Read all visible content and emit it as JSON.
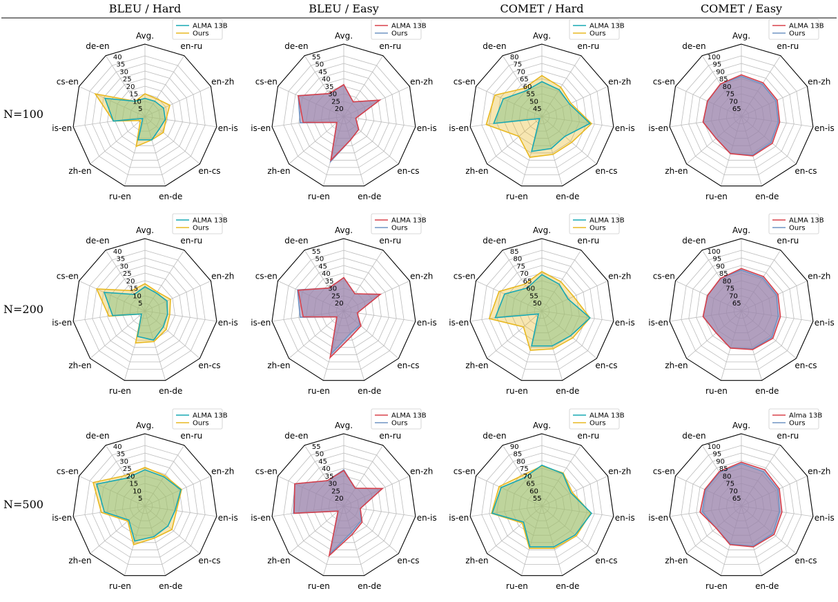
{
  "header": {
    "columns": [
      "BLEU / Hard",
      "BLEU / Easy",
      "COMET / Hard",
      "COMET / Easy"
    ],
    "rows": [
      "N=100",
      "N=200",
      "N=500"
    ]
  },
  "colors": {
    "hard_a": "#17a8b4",
    "hard_b": "#e8b820",
    "hard_fill": "#8fc48a",
    "easy_a": "#d9404a",
    "easy_b": "#6f93c4",
    "easy_fill": "#9c86ad",
    "grid": "#bbbbbb",
    "frame": "#000000"
  },
  "chart_data": [
    {
      "id": "bleu-hard-100",
      "type": "radar",
      "legend_placement": "top-right",
      "axes": [
        "Avg.",
        "en-ru",
        "en-zh",
        "en-is",
        "en-cs",
        "en-de",
        "ru-en",
        "zh-en",
        "is-en",
        "cs-en",
        "de-en"
      ],
      "rlim": [
        0,
        40
      ],
      "ticks": [
        "5",
        "10",
        "15",
        "20",
        "25",
        "30",
        "35",
        "40"
      ],
      "tick_values": [
        5,
        10,
        15,
        20,
        25,
        30,
        35,
        40
      ],
      "series": [
        {
          "name": "ALMA 13B",
          "color": "#17a8b4",
          "values": [
            12.0,
            12.0,
            13.5,
            13.5,
            12.5,
            16.0,
            16.0,
            2.0,
            21.0,
            29.0,
            12.0
          ]
        },
        {
          "name": "Ours",
          "color": "#e8b820",
          "values": [
            15.0,
            14.0,
            18.0,
            14.0,
            16.0,
            16.0,
            20.5,
            4.0,
            21.0,
            36.0,
            12.0
          ]
        }
      ]
    },
    {
      "id": "bleu-easy-100",
      "type": "radar",
      "legend_placement": "top-right",
      "axes": [
        "Avg.",
        "en-ru",
        "en-zh",
        "en-is",
        "en-cs",
        "en-de",
        "ru-en",
        "zh-en",
        "is-en",
        "cs-en",
        "de-en"
      ],
      "rlim": [
        15,
        55
      ],
      "ticks": [
        "20",
        "25",
        "30",
        "35",
        "40",
        "45",
        "50",
        "55"
      ],
      "tick_values": [
        20,
        25,
        30,
        35,
        40,
        45,
        50,
        55
      ],
      "series": [
        {
          "name": "ALMA 13B",
          "color": "#d9404a",
          "values": [
            36.0,
            26.5,
            41.0,
            23.0,
            28.0,
            31.0,
            45.0,
            21.0,
            42.0,
            48.0,
            33.0
          ]
        },
        {
          "name": "Ours",
          "color": "#6f93c4",
          "values": [
            36.0,
            26.5,
            41.0,
            23.0,
            28.0,
            31.0,
            46.0,
            21.0,
            44.0,
            48.0,
            33.0
          ]
        }
      ]
    },
    {
      "id": "comet-hard-100",
      "type": "radar",
      "legend_placement": "top-right",
      "axes": [
        "Avg.",
        "en-ru",
        "en-zh",
        "en-is",
        "en-cs",
        "en-de",
        "ru-en",
        "zh-en",
        "is-en",
        "cs-en",
        "de-en"
      ],
      "rlim": [
        40,
        80
      ],
      "ticks": [
        "45",
        "50",
        "55",
        "60",
        "65",
        "70",
        "75",
        "80"
      ],
      "tick_values": [
        45,
        50,
        55,
        60,
        65,
        70,
        75,
        80
      ],
      "series": [
        {
          "name": "ALMA 13B",
          "color": "#17a8b4",
          "values": [
            63.0,
            61.0,
            60.0,
            72.0,
            60.0,
            62.0,
            64.0,
            42.0,
            72.0,
            68.0,
            60.0
          ]
        },
        {
          "name": "Ours",
          "color": "#e8b820",
          "values": [
            67.0,
            63.0,
            61.0,
            73.0,
            66.0,
            66.0,
            68.0,
            60.0,
            77.0,
            74.0,
            62.0
          ]
        }
      ]
    },
    {
      "id": "comet-easy-100",
      "type": "radar",
      "legend_placement": "top-right",
      "axes": [
        "Avg.",
        "en-ru",
        "en-zh",
        "en-is",
        "en-cs",
        "en-de",
        "ru-en",
        "zh-en",
        "is-en",
        "cs-en",
        "de-en"
      ],
      "rlim": [
        60,
        100
      ],
      "ticks": [
        "65",
        "70",
        "75",
        "80",
        "85",
        "90",
        "95",
        "100"
      ],
      "tick_values": [
        65,
        70,
        75,
        80,
        85,
        90,
        95,
        100
      ],
      "series": [
        {
          "name": "ALMA 13B",
          "color": "#d9404a",
          "values": [
            87.5,
            86.5,
            86.0,
            85.5,
            87.0,
            87.0,
            85.5,
            82.0,
            85.5,
            84.5,
            85.5
          ]
        },
        {
          "name": "Ours",
          "color": "#6f93c4",
          "values": [
            86.5,
            85.5,
            85.0,
            84.5,
            86.0,
            86.5,
            85.5,
            82.0,
            85.5,
            84.5,
            85.5
          ]
        }
      ]
    },
    {
      "id": "bleu-hard-200",
      "type": "radar",
      "legend_placement": "top-right",
      "axes": [
        "Avg.",
        "en-ru",
        "en-zh",
        "en-is",
        "en-cs",
        "en-de",
        "ru-en",
        "zh-en",
        "is-en",
        "cs-en",
        "de-en"
      ],
      "rlim": [
        0,
        40
      ],
      "ticks": [
        "5",
        "10",
        "15",
        "20",
        "25",
        "30",
        "35",
        "40"
      ],
      "tick_values": [
        5,
        10,
        15,
        20,
        25,
        30,
        35,
        40
      ],
      "series": [
        {
          "name": "ALMA 13B",
          "color": "#17a8b4",
          "values": [
            16.0,
            14.0,
            16.0,
            15.0,
            16.0,
            20.0,
            17.5,
            3.0,
            21.5,
            29.5,
            13.0
          ]
        },
        {
          "name": "Ours",
          "color": "#e8b820",
          "values": [
            18.0,
            15.0,
            18.5,
            16.5,
            18.5,
            21.0,
            22.0,
            3.0,
            24.0,
            35.0,
            16.0
          ]
        }
      ]
    },
    {
      "id": "bleu-easy-200",
      "type": "radar",
      "legend_placement": "top-right",
      "axes": [
        "Avg.",
        "en-ru",
        "en-zh",
        "en-is",
        "en-cs",
        "en-de",
        "ru-en",
        "zh-en",
        "is-en",
        "cs-en",
        "de-en"
      ],
      "rlim": [
        15,
        55
      ],
      "ticks": [
        "20",
        "25",
        "30",
        "35",
        "40",
        "45",
        "50",
        "55"
      ],
      "tick_values": [
        20,
        25,
        30,
        35,
        40,
        45,
        50,
        55
      ],
      "series": [
        {
          "name": "ALMA 13B",
          "color": "#d9404a",
          "values": [
            37.0,
            28.5,
            41.5,
            24.0,
            30.0,
            32.5,
            47.0,
            21.0,
            42.0,
            48.0,
            33.0
          ]
        },
        {
          "name": "Ours",
          "color": "#6f93c4",
          "values": [
            37.0,
            28.5,
            41.5,
            24.0,
            29.0,
            30.5,
            44.5,
            21.0,
            44.0,
            48.5,
            33.0
          ]
        }
      ]
    },
    {
      "id": "comet-hard-200",
      "type": "radar",
      "legend_placement": "top-right",
      "axes": [
        "Avg.",
        "en-ru",
        "en-zh",
        "en-is",
        "en-cs",
        "en-de",
        "ru-en",
        "zh-en",
        "is-en",
        "cs-en",
        "de-en"
      ],
      "rlim": [
        45,
        85
      ],
      "ticks": [
        "50",
        "55",
        "60",
        "65",
        "70",
        "75",
        "80",
        "85"
      ],
      "tick_values": [
        50,
        55,
        60,
        65,
        70,
        75,
        80,
        85
      ],
      "series": [
        {
          "name": "ALMA 13B",
          "color": "#17a8b4",
          "values": [
            69.0,
            66.0,
            64.0,
            77.0,
            70.0,
            69.0,
            69.0,
            48.0,
            76.0,
            72.0,
            63.0
          ]
        },
        {
          "name": "Ours",
          "color": "#e8b820",
          "values": [
            71.0,
            68.0,
            68.0,
            77.0,
            72.0,
            71.0,
            72.0,
            61.0,
            80.0,
            76.0,
            66.0
          ]
        }
      ]
    },
    {
      "id": "comet-easy-200",
      "type": "radar",
      "legend_placement": "top-right",
      "axes": [
        "Avg.",
        "en-ru",
        "en-zh",
        "en-is",
        "en-cs",
        "en-de",
        "ru-en",
        "zh-en",
        "is-en",
        "cs-en",
        "de-en"
      ],
      "rlim": [
        60,
        100
      ],
      "ticks": [
        "65",
        "70",
        "75",
        "80",
        "85",
        "90",
        "95",
        "100"
      ],
      "tick_values": [
        65,
        70,
        75,
        80,
        85,
        90,
        95,
        100
      ],
      "series": [
        {
          "name": "ALMA 13B",
          "color": "#d9404a",
          "values": [
            88.0,
            87.0,
            86.5,
            86.0,
            87.5,
            86.5,
            85.5,
            82.0,
            85.5,
            84.5,
            85.5
          ]
        },
        {
          "name": "Ours",
          "color": "#6f93c4",
          "values": [
            87.0,
            86.0,
            85.5,
            84.5,
            86.5,
            86.0,
            85.5,
            82.0,
            85.5,
            84.5,
            85.5
          ]
        }
      ]
    },
    {
      "id": "bleu-hard-500",
      "type": "radar",
      "legend_placement": "top-right",
      "axes": [
        "Avg.",
        "en-ru",
        "en-zh",
        "en-is",
        "en-cs",
        "en-de",
        "ru-en",
        "zh-en",
        "is-en",
        "cs-en",
        "de-en"
      ],
      "rlim": [
        0,
        40
      ],
      "ticks": [
        "5",
        "10",
        "15",
        "20",
        "25",
        "30",
        "35",
        "40"
      ],
      "tick_values": [
        5,
        10,
        15,
        20,
        25,
        30,
        35,
        40
      ],
      "series": [
        {
          "name": "ALMA 13B",
          "color": "#17a8b4",
          "values": [
            24.0,
            23.0,
            26.0,
            20.0,
            20.0,
            21.0,
            24.0,
            14.0,
            27.0,
            35.0,
            22.0
          ]
        },
        {
          "name": "Ours",
          "color": "#e8b820",
          "values": [
            25.5,
            24.0,
            26.5,
            21.0,
            23.5,
            22.0,
            26.5,
            15.0,
            29.0,
            37.5,
            24.0
          ]
        }
      ]
    },
    {
      "id": "bleu-easy-500",
      "type": "radar",
      "legend_placement": "top-right",
      "axes": [
        "Avg.",
        "en-ru",
        "en-zh",
        "en-is",
        "en-cs",
        "en-de",
        "ru-en",
        "zh-en",
        "is-en",
        "cs-en",
        "de-en"
      ],
      "rlim": [
        15,
        55
      ],
      "ticks": [
        "20",
        "25",
        "30",
        "35",
        "40",
        "45",
        "50",
        "55"
      ],
      "tick_values": [
        20,
        25,
        30,
        35,
        40,
        45,
        50,
        55
      ],
      "series": [
        {
          "name": "ALMA 13B",
          "color": "#d9404a",
          "values": [
            38.5,
            29.0,
            43.0,
            26.0,
            31.0,
            34.5,
            49.0,
            20.0,
            48.0,
            50.5,
            35.0
          ]
        },
        {
          "name": "Ours",
          "color": "#6f93c4",
          "values": [
            39.0,
            29.0,
            43.0,
            26.0,
            30.0,
            33.0,
            48.0,
            20.0,
            48.5,
            50.5,
            35.0
          ]
        }
      ]
    },
    {
      "id": "comet-hard-500",
      "type": "radar",
      "legend_placement": "top-right",
      "axes": [
        "Avg.",
        "en-ru",
        "en-zh",
        "en-is",
        "en-cs",
        "en-de",
        "ru-en",
        "zh-en",
        "is-en",
        "cs-en",
        "de-en"
      ],
      "rlim": [
        50,
        90
      ],
      "ticks": [
        "55",
        "60",
        "65",
        "70",
        "75",
        "80",
        "85",
        "90"
      ],
      "tick_values": [
        55,
        60,
        65,
        70,
        75,
        80,
        85,
        90
      ],
      "series": [
        {
          "name": "ALMA 13B",
          "color": "#17a8b4",
          "values": [
            77.0,
            75.5,
            71.0,
            83.0,
            79.0,
            78.0,
            78.0,
            66.0,
            83.0,
            79.5,
            72.0
          ]
        },
        {
          "name": "Ours",
          "color": "#e8b820",
          "values": [
            76.5,
            76.0,
            72.0,
            82.5,
            80.0,
            79.0,
            79.0,
            67.0,
            83.5,
            81.0,
            74.0
          ]
        }
      ]
    },
    {
      "id": "comet-easy-500",
      "type": "radar",
      "legend_placement": "top-right",
      "axes": [
        "Avg.",
        "en-ru",
        "en-zh",
        "en-is",
        "en-cs",
        "en-de",
        "ru-en",
        "zh-en",
        "is-en",
        "cs-en",
        "de-en"
      ],
      "rlim": [
        60,
        100
      ],
      "ticks": [
        "65",
        "70",
        "75",
        "80",
        "85",
        "90",
        "95",
        "100"
      ],
      "tick_values": [
        65,
        70,
        75,
        80,
        85,
        90,
        95,
        100
      ],
      "series": [
        {
          "name": "Alma 13B",
          "color": "#d9404a",
          "values": [
            89.0,
            88.5,
            87.5,
            87.0,
            88.5,
            88.0,
            86.5,
            82.0,
            87.5,
            86.5,
            87.0
          ]
        },
        {
          "name": "Ours",
          "color": "#6f93c4",
          "values": [
            88.0,
            87.0,
            86.5,
            85.5,
            87.5,
            87.5,
            86.0,
            82.0,
            86.0,
            86.0,
            86.5
          ]
        }
      ]
    }
  ]
}
